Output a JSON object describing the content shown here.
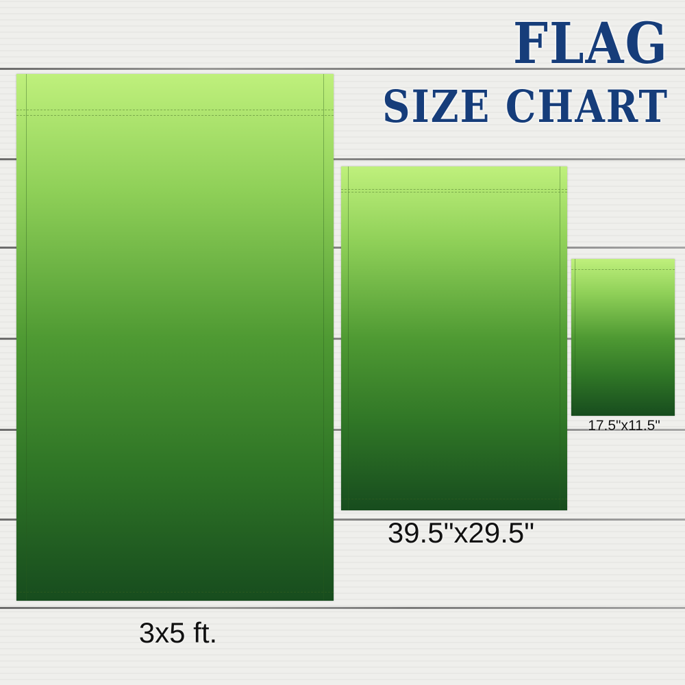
{
  "title": {
    "line1": "FLAG",
    "line2": "SIZE CHART"
  },
  "colors": {
    "title": "#163d7a",
    "flag_top": "#bff07c",
    "flag_bottom": "#174c1e"
  },
  "sizes": [
    {
      "label": "3x5 ft."
    },
    {
      "label": "39.5\"x29.5\""
    },
    {
      "label": "17.5\"x11.5\""
    }
  ]
}
